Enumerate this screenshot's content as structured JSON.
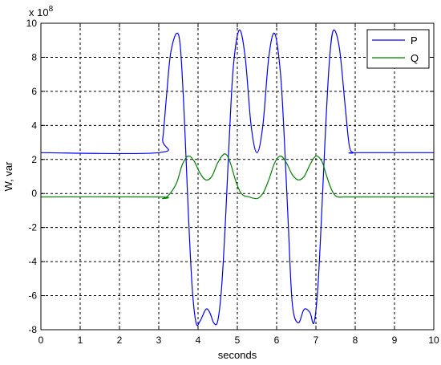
{
  "chart_data": {
    "type": "line",
    "xlabel": "seconds",
    "ylabel": "W, var",
    "y_exponent_label": "x 10",
    "y_exponent_power": "8",
    "xlim": [
      0,
      10
    ],
    "ylim": [
      -8,
      10
    ],
    "x_ticks": [
      "0",
      "1",
      "2",
      "3",
      "4",
      "5",
      "6",
      "7",
      "8",
      "9",
      "10"
    ],
    "y_ticks": [
      "-8",
      "-6",
      "-4",
      "-2",
      "0",
      "2",
      "4",
      "6",
      "8",
      "10"
    ],
    "grid": true,
    "legend_position": "top-right",
    "series": [
      {
        "name": "P",
        "color": "#0000ff",
        "x": [
          0,
          3.0,
          3.1,
          3.2,
          3.3,
          3.45,
          3.55,
          3.65,
          3.75,
          3.85,
          3.95,
          4.05,
          4.2,
          4.3,
          4.4,
          4.5,
          4.6,
          4.7,
          4.8,
          4.9,
          5.05,
          5.2,
          5.35,
          5.5,
          5.65,
          5.8,
          5.95,
          6.1,
          6.2,
          6.3,
          6.4,
          6.55,
          6.7,
          6.85,
          6.95,
          7.05,
          7.15,
          7.25,
          7.35,
          7.45,
          7.6,
          7.75,
          7.85,
          7.95,
          8.0,
          10
        ],
        "y": [
          2.4,
          2.4,
          3.2,
          5.8,
          8.2,
          9.4,
          8.6,
          4.5,
          -1.0,
          -5.5,
          -7.6,
          -7.5,
          -6.8,
          -7.0,
          -7.6,
          -7.5,
          -5.5,
          -1.5,
          3.5,
          7.5,
          9.6,
          8.0,
          4.0,
          2.4,
          4.0,
          8.0,
          9.4,
          7.0,
          3.0,
          -2.0,
          -6.5,
          -7.6,
          -6.8,
          -7.0,
          -7.6,
          -5.5,
          -1.0,
          4.0,
          8.0,
          9.6,
          8.5,
          5.0,
          2.8,
          2.4,
          2.4,
          2.4
        ]
      },
      {
        "name": "Q",
        "color": "#008000",
        "x": [
          0,
          3.0,
          3.1,
          3.25,
          3.45,
          3.6,
          3.75,
          3.9,
          4.05,
          4.2,
          4.35,
          4.5,
          4.65,
          4.75,
          4.85,
          4.95,
          5.05,
          5.15,
          5.3,
          5.5,
          5.65,
          5.8,
          5.95,
          6.1,
          6.25,
          6.4,
          6.55,
          6.7,
          6.85,
          7.0,
          7.15,
          7.25,
          7.35,
          7.45,
          7.55,
          7.7,
          7.85,
          8.0,
          10
        ],
        "y": [
          -0.2,
          -0.2,
          -0.3,
          -0.1,
          0.6,
          1.7,
          2.2,
          1.9,
          1.2,
          0.8,
          1.0,
          1.8,
          2.3,
          2.2,
          1.6,
          0.8,
          0.2,
          -0.1,
          -0.2,
          -0.3,
          0.0,
          0.8,
          1.8,
          2.2,
          1.8,
          1.1,
          0.8,
          1.0,
          1.7,
          2.2,
          1.9,
          1.2,
          0.5,
          0.0,
          -0.2,
          -0.2,
          -0.2,
          -0.2,
          -0.2
        ]
      }
    ]
  }
}
